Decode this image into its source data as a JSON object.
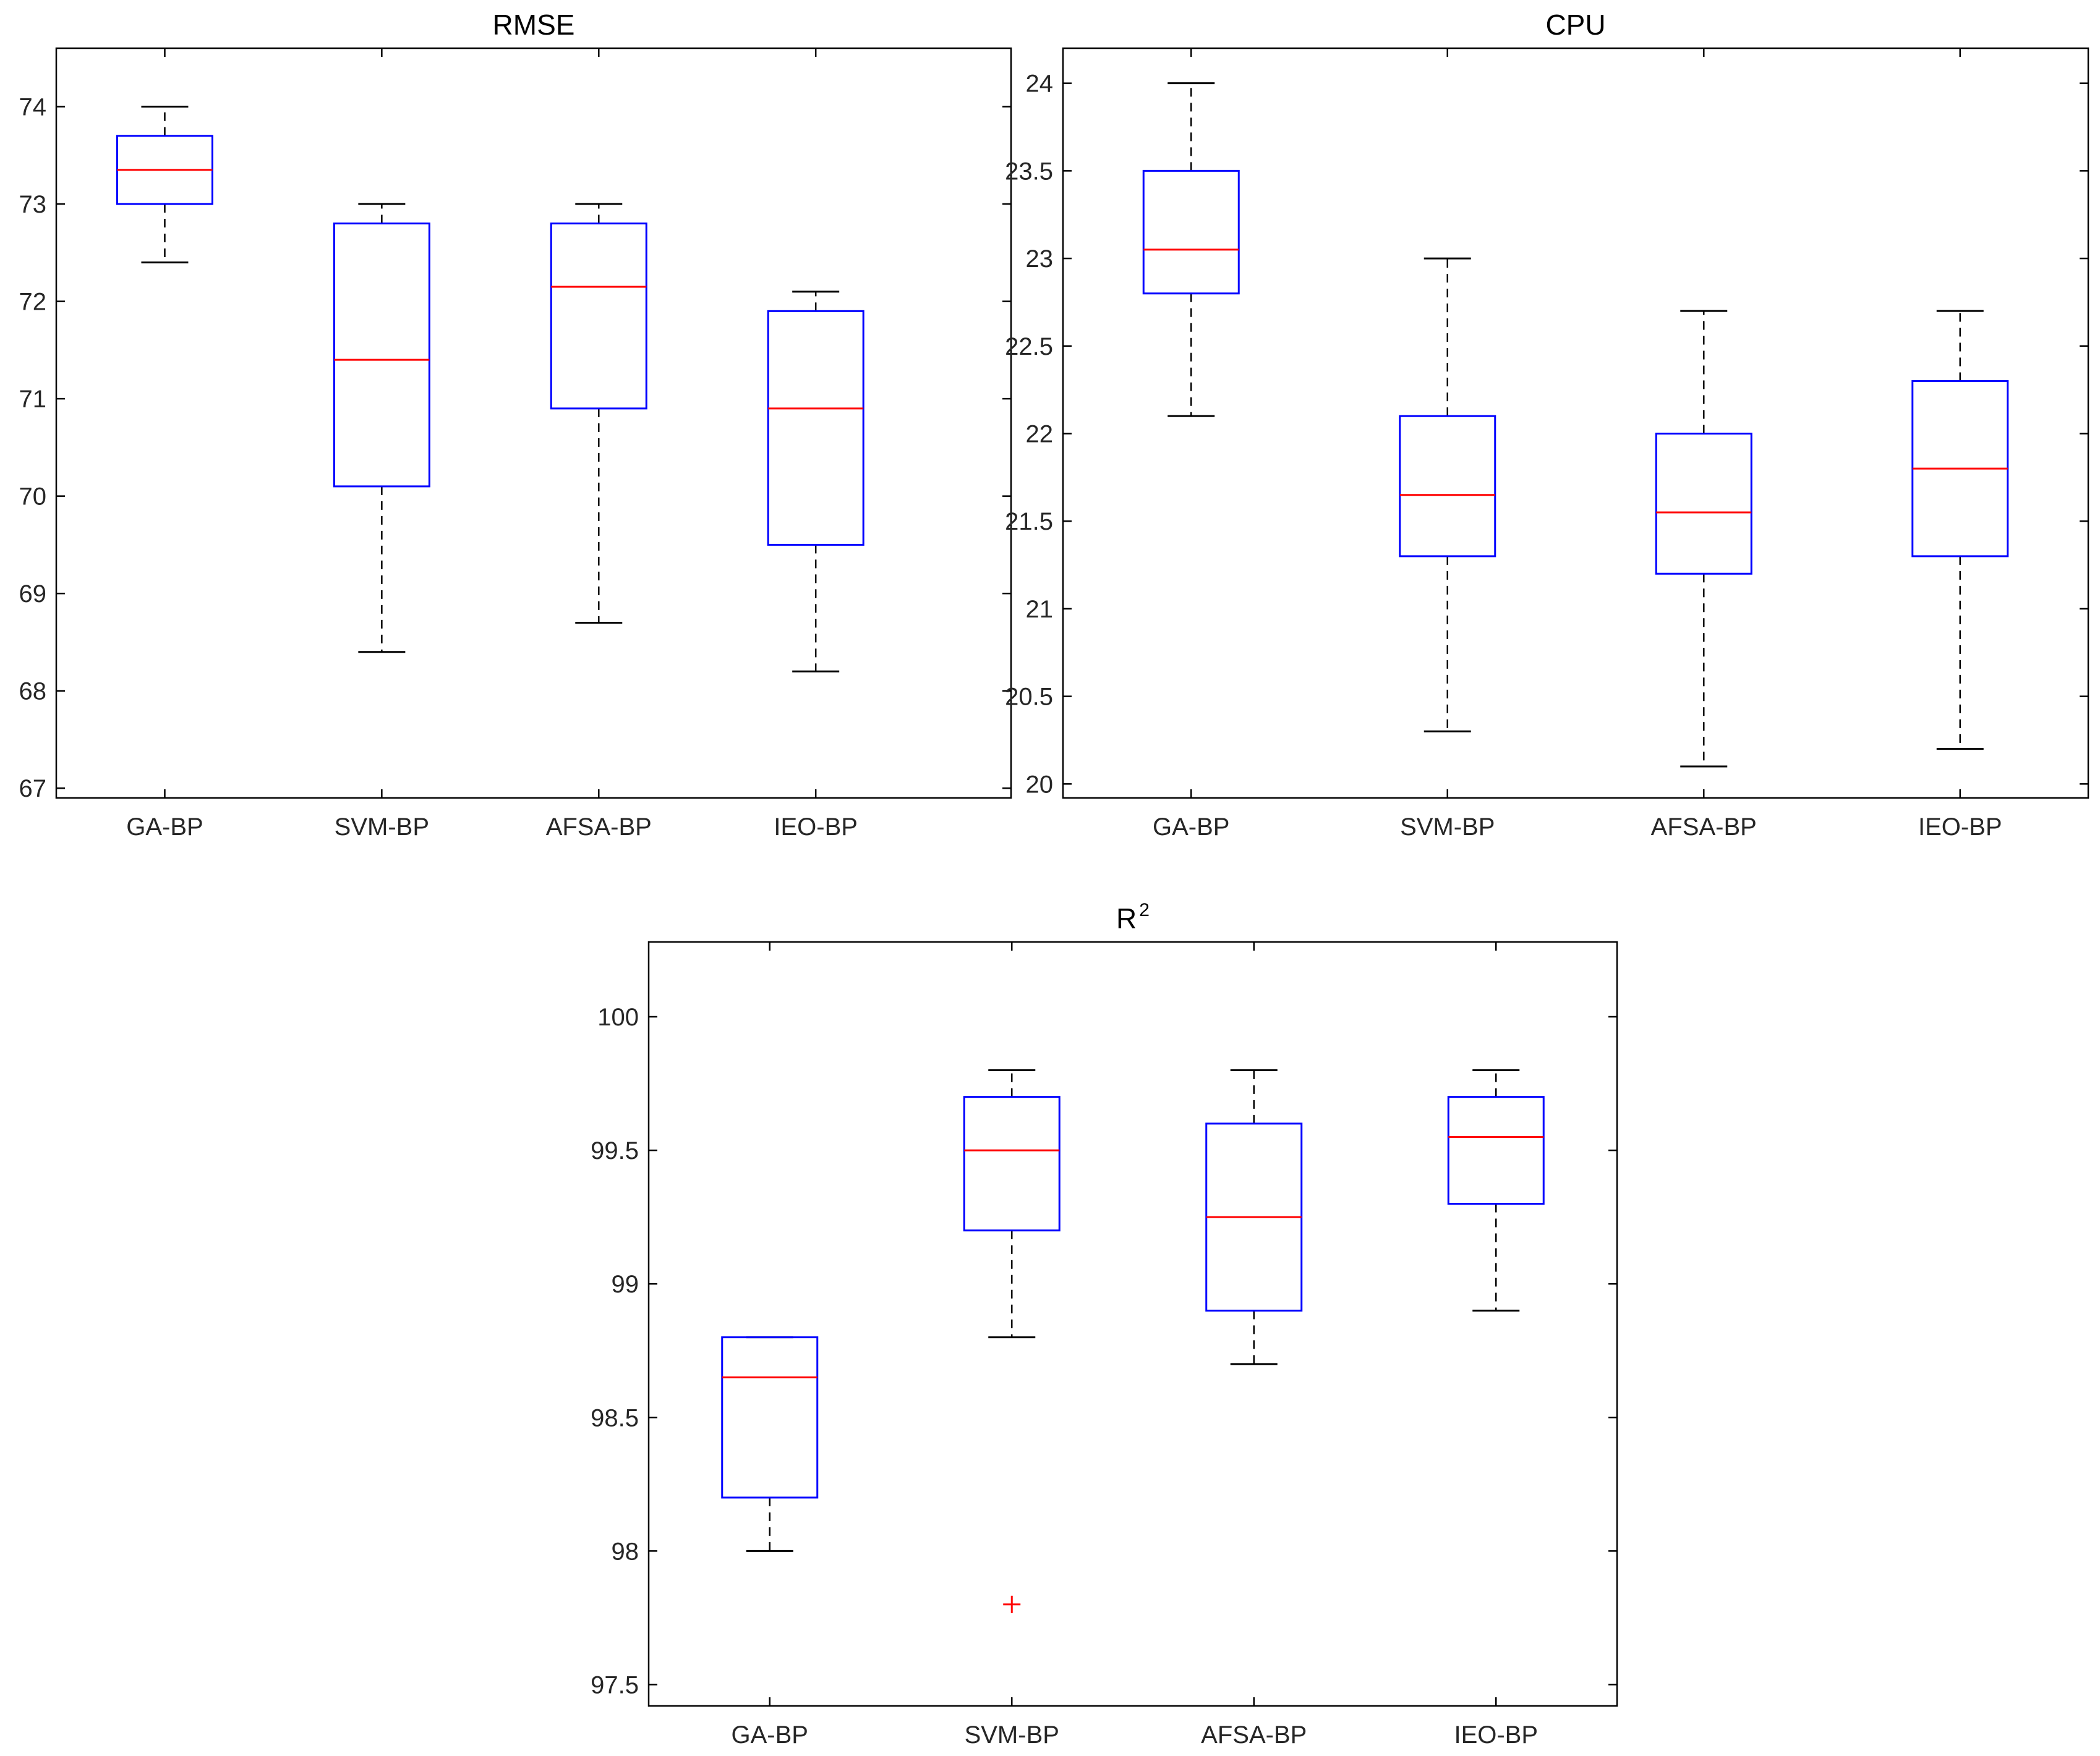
{
  "chart_data": [
    {
      "id": "rmse",
      "type": "boxplot",
      "title": "RMSE",
      "title_sup": "",
      "categories": [
        "GA-BP",
        "SVM-BP",
        "AFSA-BP",
        "IEO-BP"
      ],
      "ylim": [
        66.9,
        74.6
      ],
      "yticks": [
        67,
        68,
        69,
        70,
        71,
        72,
        73,
        74
      ],
      "ytick_labels": [
        "67",
        "68",
        "69",
        "70",
        "71",
        "72",
        "73",
        "74"
      ],
      "boxes": [
        {
          "whisker_low": 72.4,
          "q1": 73.0,
          "median": 73.35,
          "q3": 73.7,
          "whisker_high": 74.0,
          "outliers": []
        },
        {
          "whisker_low": 68.4,
          "q1": 70.1,
          "median": 71.4,
          "q3": 72.8,
          "whisker_high": 73.0,
          "outliers": []
        },
        {
          "whisker_low": 68.7,
          "q1": 70.9,
          "median": 72.15,
          "q3": 72.8,
          "whisker_high": 73.0,
          "outliers": []
        },
        {
          "whisker_low": 68.2,
          "q1": 69.5,
          "median": 70.9,
          "q3": 71.9,
          "whisker_high": 72.1,
          "outliers": []
        }
      ]
    },
    {
      "id": "cpu",
      "type": "boxplot",
      "title": "CPU",
      "title_sup": "",
      "categories": [
        "GA-BP",
        "SVM-BP",
        "AFSA-BP",
        "IEO-BP"
      ],
      "ylim": [
        19.92,
        24.2
      ],
      "yticks": [
        20,
        20.5,
        21,
        21.5,
        22,
        22.5,
        23,
        23.5,
        24
      ],
      "ytick_labels": [
        "20",
        "20.5",
        "21",
        "21.5",
        "22",
        "22.5",
        "23",
        "23.5",
        "24"
      ],
      "boxes": [
        {
          "whisker_low": 22.1,
          "q1": 22.8,
          "median": 23.05,
          "q3": 23.5,
          "whisker_high": 24.0,
          "outliers": []
        },
        {
          "whisker_low": 20.3,
          "q1": 21.3,
          "median": 21.65,
          "q3": 22.1,
          "whisker_high": 23.0,
          "outliers": []
        },
        {
          "whisker_low": 20.1,
          "q1": 21.2,
          "median": 21.55,
          "q3": 22.0,
          "whisker_high": 22.7,
          "outliers": []
        },
        {
          "whisker_low": 20.2,
          "q1": 21.3,
          "median": 21.8,
          "q3": 22.3,
          "whisker_high": 22.7,
          "outliers": []
        }
      ]
    },
    {
      "id": "r2",
      "type": "boxplot",
      "title": "R",
      "title_sup": "2",
      "categories": [
        "GA-BP",
        "SVM-BP",
        "AFSA-BP",
        "IEO-BP"
      ],
      "ylim": [
        97.42,
        100.28
      ],
      "yticks": [
        97.5,
        98,
        98.5,
        99,
        99.5,
        100
      ],
      "ytick_labels": [
        "97.5",
        "98",
        "98.5",
        "99",
        "99.5",
        "100"
      ],
      "boxes": [
        {
          "whisker_low": 98.0,
          "q1": 98.2,
          "median": 98.65,
          "q3": 98.8,
          "whisker_high": 98.8,
          "outliers": []
        },
        {
          "whisker_low": 98.8,
          "q1": 99.2,
          "median": 99.5,
          "q3": 99.7,
          "whisker_high": 99.8,
          "outliers": [
            97.8
          ]
        },
        {
          "whisker_low": 98.7,
          "q1": 98.9,
          "median": 99.25,
          "q3": 99.6,
          "whisker_high": 99.8,
          "outliers": []
        },
        {
          "whisker_low": 98.9,
          "q1": 99.3,
          "median": 99.55,
          "q3": 99.7,
          "whisker_high": 99.8,
          "outliers": []
        }
      ]
    }
  ],
  "colors": {
    "box": "#0000ff",
    "median": "#ff0000",
    "whisker": "#000000",
    "outlier": "#ff0000",
    "axis": "#000000"
  }
}
